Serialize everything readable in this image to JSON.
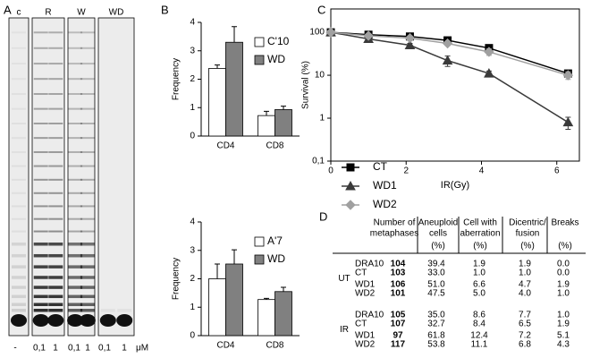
{
  "panel_labels": [
    "A",
    "B",
    "C",
    "D"
  ],
  "gel": {
    "lanes": [
      "c",
      "R",
      "W",
      "WD"
    ],
    "concentrations": [
      "-",
      "0,1",
      "1",
      "0,1",
      "1",
      "0,1",
      "1"
    ],
    "unit": "μM"
  },
  "chart_data": [
    {
      "type": "bar",
      "y_label": "Frequency",
      "categories": [
        "CD4",
        "CD8"
      ],
      "series": [
        {
          "name": "C'10",
          "color": "#ffffff",
          "values": [
            2.38,
            0.72
          ],
          "errors": [
            0.12,
            0.15
          ]
        },
        {
          "name": "WD",
          "color": "#808080",
          "values": [
            3.3,
            0.93
          ],
          "errors": [
            0.55,
            0.12
          ]
        }
      ],
      "ylim": [
        0,
        4
      ],
      "yticks": [
        0,
        1,
        2,
        3,
        4
      ]
    },
    {
      "type": "bar",
      "y_label": "Frequency",
      "categories": [
        "CD4",
        "CD8"
      ],
      "series": [
        {
          "name": "A'7",
          "color": "#ffffff",
          "values": [
            2.0,
            1.27
          ],
          "errors": [
            0.52,
            0.04
          ]
        },
        {
          "name": "WD",
          "color": "#808080",
          "values": [
            2.52,
            1.55
          ],
          "errors": [
            0.5,
            0.15
          ]
        }
      ],
      "ylim": [
        0,
        4
      ],
      "yticks": [
        0,
        1,
        2,
        3,
        4
      ]
    },
    {
      "type": "line",
      "x_label": "IR(Gy)",
      "y_label": "Survival (%)",
      "log_y": true,
      "series": [
        {
          "name": "CT",
          "color": "#000000",
          "marker": "square",
          "x": [
            0,
            1,
            2.1,
            3.1,
            4.2,
            6.3
          ],
          "values": [
            100,
            88,
            80,
            65,
            43,
            11
          ],
          "errors": [
            0,
            5,
            5,
            6,
            8,
            2
          ]
        },
        {
          "name": "WD1",
          "color": "#3a3a3a",
          "marker": "triangle",
          "x": [
            0,
            1,
            2.1,
            3.1,
            4.2,
            6.3
          ],
          "values": [
            100,
            70,
            50,
            22,
            11,
            0.8
          ],
          "errors": [
            0,
            8,
            5,
            6,
            1.5,
            0.25
          ]
        },
        {
          "name": "WD2",
          "color": "#a0a0a0",
          "marker": "diamond",
          "x": [
            0,
            1,
            2.1,
            3.1,
            4.2,
            6.3
          ],
          "values": [
            100,
            83,
            73,
            55,
            35,
            10
          ],
          "errors": [
            0,
            5,
            5,
            6,
            6,
            2
          ]
        }
      ],
      "xlim": [
        0,
        6.6
      ],
      "xticks": [
        0,
        2,
        4,
        6
      ],
      "ylim": [
        0.1,
        350
      ],
      "yticks": [
        {
          "value": 0.1,
          "label": "0,1"
        },
        1,
        10,
        100
      ]
    }
  ],
  "table": {
    "columns": [
      [
        "Number of",
        "metaphases"
      ],
      [
        "Aneuploid",
        "cells"
      ],
      [
        "Cell with",
        "aberration"
      ],
      [
        "Dicentric/",
        "fusion"
      ],
      [
        "Breaks"
      ]
    ],
    "units": [
      "(%)",
      "(%)",
      "(%)",
      "(%)"
    ],
    "groups": [
      {
        "label": "UT",
        "rows": [
          [
            "DRA10",
            "104",
            "39.4",
            "1.9",
            "1.9",
            "0.0"
          ],
          [
            "CT",
            "103",
            "33.0",
            "1.0",
            "1.0",
            "0.0"
          ],
          [
            "WD1",
            "106",
            "51.0",
            "6.6",
            "4.7",
            "1.9"
          ],
          [
            "WD2",
            "101",
            "47.5",
            "5.0",
            "4.0",
            "1.0"
          ]
        ]
      },
      {
        "label": "IR",
        "rows": [
          [
            "DRA10",
            "105",
            "35.0",
            "8.6",
            "7.7",
            "1.0"
          ],
          [
            "CT",
            "107",
            "32.7",
            "8.4",
            "6.5",
            "1.9"
          ],
          [
            "WD1",
            "97",
            "61.8",
            "12.4",
            "7.2",
            "5.1"
          ],
          [
            "WD2",
            "117",
            "53.8",
            "11.1",
            "6.8",
            "4.3"
          ]
        ]
      }
    ]
  }
}
